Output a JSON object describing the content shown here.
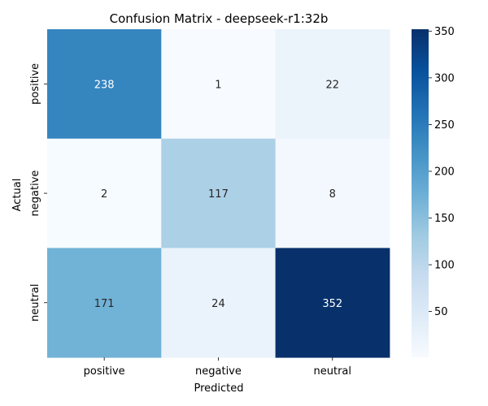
{
  "chart_data": {
    "type": "heatmap",
    "title": "Confusion Matrix - deepseek-r1:32b",
    "xlabel": "Predicted",
    "ylabel": "Actual",
    "x_categories": [
      "positive",
      "negative",
      "neutral"
    ],
    "y_categories": [
      "positive",
      "negative",
      "neutral"
    ],
    "values": [
      [
        238,
        1,
        22
      ],
      [
        2,
        117,
        8
      ],
      [
        171,
        24,
        352
      ]
    ],
    "colormap": "Blues",
    "value_range": [
      1,
      352
    ],
    "colorbar_ticks": [
      50,
      100,
      150,
      200,
      250,
      300,
      350
    ],
    "colors": {
      "low": "#f7fbff",
      "high": "#08306b",
      "text_dark": "#262626",
      "text_light": "#ffffff"
    }
  }
}
